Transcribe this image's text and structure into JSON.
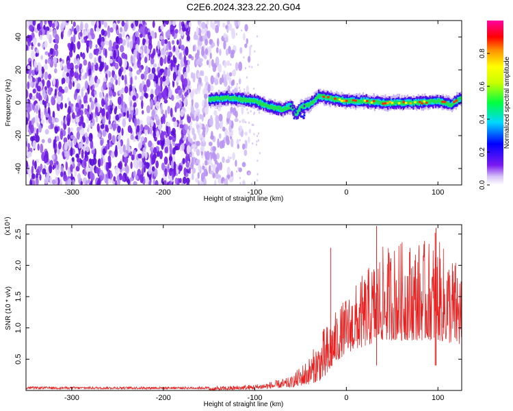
{
  "figure_title": "C2E6.2024.323.22.20.G04",
  "colors": {
    "snr_line": "#e8201f",
    "axis": "#000000"
  },
  "chart_data": [
    {
      "type": "heatmap",
      "title": "C2E6.2024.323.22.20.G04",
      "xlabel": "Height of straight line (km)",
      "ylabel": "Frequency (Hz)",
      "xlim": [
        -350,
        126
      ],
      "ylim": [
        -50,
        50
      ],
      "xticks": [
        -300,
        -200,
        -100,
        0,
        100
      ],
      "yticks": [
        -40,
        -20,
        0,
        20,
        40
      ],
      "colorbar": {
        "label": "Normalized spectral amplitude",
        "range": [
          0,
          1
        ],
        "ticks": [
          0.0,
          0.2,
          0.4,
          0.6,
          0.8
        ],
        "colormap": "rainbow (white, purple, blue, cyan, green, yellow, orange, red, magenta)"
      },
      "features": [
        {
          "name": "noise",
          "x_range": [
            -350,
            -100
          ],
          "f_range": [
            -50,
            50
          ],
          "amplitude": "low (0.1–0.3)"
        },
        {
          "name": "signal_track",
          "x_range": [
            -150,
            126
          ],
          "f_center": [
            [
              -150,
              2
            ],
            [
              -130,
              3
            ],
            [
              -115,
              2
            ],
            [
              -100,
              1
            ],
            [
              -90,
              -1
            ],
            [
              -80,
              -3
            ],
            [
              -70,
              -4
            ],
            [
              -60,
              -2
            ],
            [
              -55,
              -7
            ],
            [
              -50,
              -3
            ],
            [
              -40,
              -1
            ],
            [
              -30,
              4
            ],
            [
              -20,
              3
            ],
            [
              0,
              1
            ],
            [
              20,
              1
            ],
            [
              40,
              0
            ],
            [
              60,
              0
            ],
            [
              80,
              0
            ],
            [
              100,
              1
            ],
            [
              115,
              -1
            ],
            [
              126,
              3
            ]
          ],
          "peak_amplitude": 0.9
        }
      ]
    },
    {
      "type": "line",
      "xlabel": "Height of straight line (km)",
      "ylabel": "SNR (10 * v/v)",
      "y_multiplier": "(x10⁴)",
      "xlim": [
        -350,
        126
      ],
      "ylim": [
        0,
        2.65
      ],
      "xticks": [
        -300,
        -200,
        -100,
        0,
        100
      ],
      "yticks": [
        0.5,
        1.0,
        1.5,
        2.0,
        2.5
      ],
      "series": [
        {
          "envelope": {
            "x": [
              -350,
              -250,
              -150,
              -120,
              -100,
              -80,
              -60,
              -50,
              -40,
              -30,
              -25,
              -20,
              -15,
              -10,
              0,
              20,
              40,
              60,
              80,
              100,
              120,
              126
            ],
            "y": [
              0.04,
              0.05,
              0.06,
              0.08,
              0.1,
              0.15,
              0.22,
              0.4,
              0.55,
              0.85,
              1.0,
              1.1,
              1.2,
              1.3,
              1.5,
              1.9,
              2.3,
              2.4,
              2.4,
              2.4,
              2.1,
              2.0
            ]
          },
          "floor": {
            "x": [
              -350,
              -150,
              -100,
              -60,
              -40,
              -20,
              -15,
              0,
              40,
              100,
              126
            ],
            "y": [
              0.0,
              0.0,
              0.02,
              0.05,
              0.1,
              0.2,
              0.4,
              0.6,
              0.8,
              0.8,
              0.7
            ]
          },
          "spikes": [
            {
              "x": -17,
              "y": 2.28
            },
            {
              "x": 33,
              "y": 2.63
            },
            {
              "x": 97,
              "y": 2.52
            },
            {
              "x": 98,
              "y": 2.6
            }
          ]
        }
      ]
    }
  ]
}
